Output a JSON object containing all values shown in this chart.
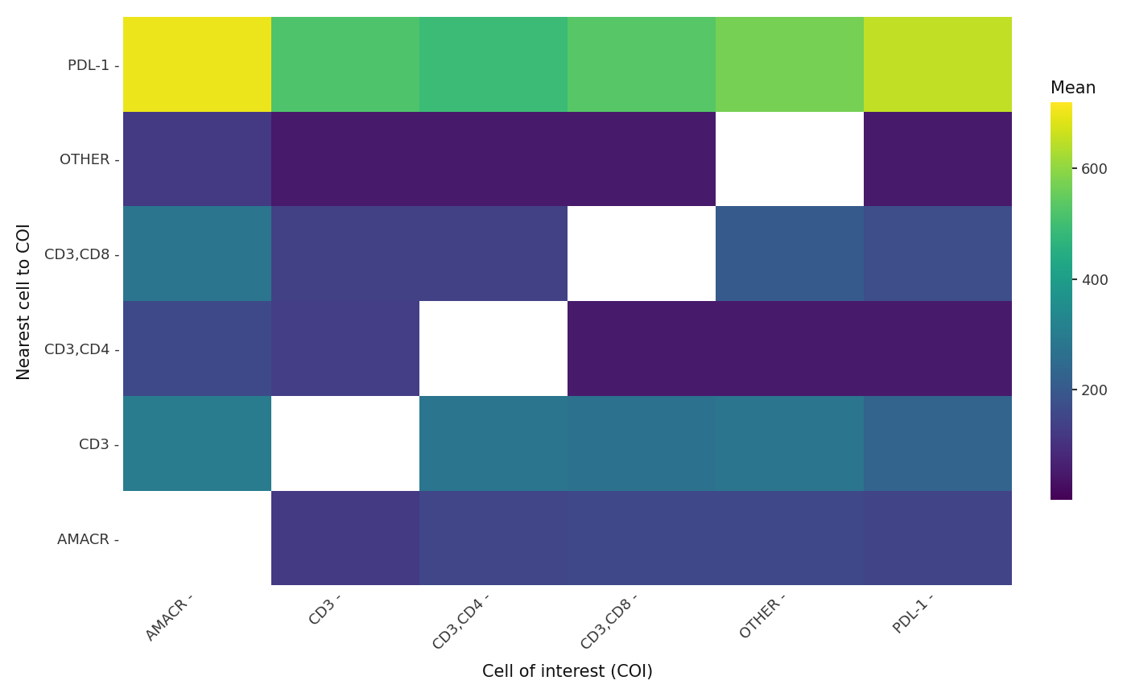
{
  "rows": [
    "PDL-1",
    "OTHER",
    "CD3,CD8",
    "CD3,CD4",
    "CD3",
    "AMACR"
  ],
  "cols": [
    "AMACR",
    "CD3",
    "CD3,CD4",
    "CD3,CD8",
    "OTHER",
    "PDL-1"
  ],
  "values": [
    [
      700,
      520,
      490,
      530,
      570,
      650
    ],
    [
      120,
      50,
      50,
      50,
      null,
      50
    ],
    [
      280,
      140,
      140,
      null,
      200,
      170
    ],
    [
      160,
      130,
      null,
      50,
      50,
      50
    ],
    [
      300,
      null,
      280,
      270,
      280,
      230
    ],
    [
      null,
      120,
      150,
      155,
      155,
      145
    ]
  ],
  "cmap": "viridis",
  "vmin": 0,
  "vmax": 720,
  "colorbar_label": "Mean",
  "colorbar_ticks": [
    200,
    400,
    600
  ],
  "xlabel": "Cell of interest (COI)",
  "ylabel": "Nearest cell to COI",
  "bg_color": "#ffffff",
  "tick_color": "#333333",
  "label_color": "#111111",
  "title_fontsize": 15,
  "axis_fontsize": 15,
  "tick_fontsize": 13,
  "dash": " -"
}
